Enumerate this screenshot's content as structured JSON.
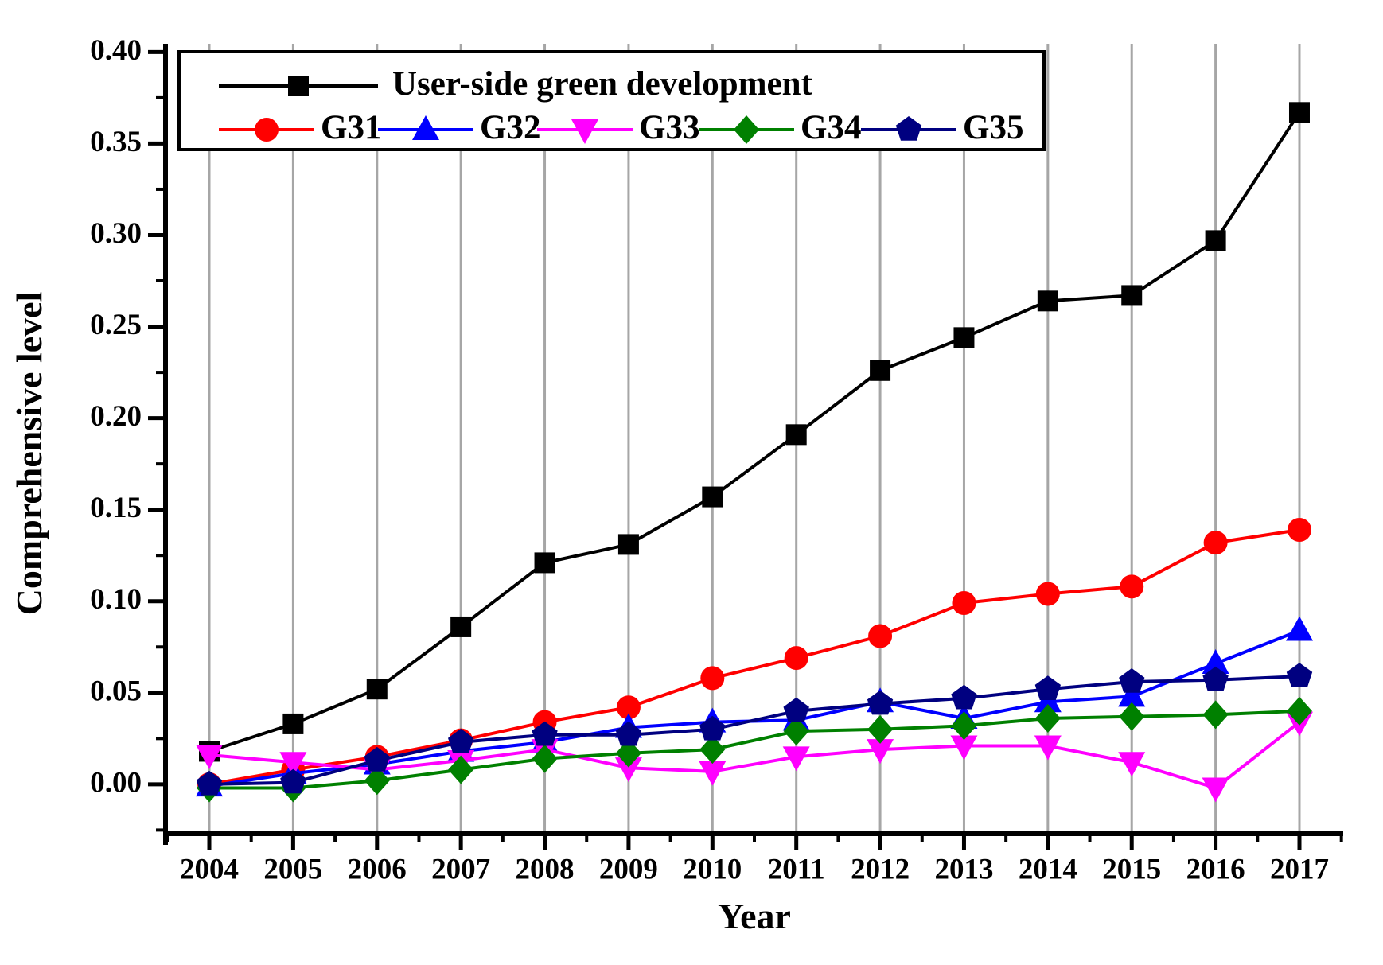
{
  "figure": {
    "background": "#ffffff",
    "gridline_color": "#a6a6a6",
    "axis_color": "#000000"
  },
  "chart_data": {
    "type": "line",
    "title": "",
    "xlabel": "Year",
    "ylabel": "Comprehensive level",
    "grid": "vertical-major-only",
    "legend_position": "top-left-inside",
    "xlim": [
      2003.478,
      2017.522
    ],
    "ylim": [
      -0.027,
      0.4045
    ],
    "x": [
      2004,
      2005,
      2006,
      2007,
      2008,
      2009,
      2010,
      2011,
      2012,
      2013,
      2014,
      2015,
      2016,
      2017
    ],
    "x_tick_labels": [
      "2004",
      "2005",
      "2006",
      "2007",
      "2008",
      "2009",
      "2010",
      "2011",
      "2012",
      "2013",
      "2014",
      "2015",
      "2016",
      "2017"
    ],
    "y_tick_values": [
      0.0,
      0.05,
      0.1,
      0.15,
      0.2,
      0.25,
      0.3,
      0.35,
      0.4
    ],
    "y_tick_labels": [
      "0.00",
      "0.05",
      "0.10",
      "0.15",
      "0.20",
      "0.25",
      "0.30",
      "0.35",
      "0.40"
    ],
    "y_minor_step": 0.025,
    "x_minor_step": 0.5,
    "series": [
      {
        "name": "User-side green development",
        "color": "#000000",
        "marker": "square",
        "values": [
          0.018,
          0.033,
          0.052,
          0.086,
          0.121,
          0.131,
          0.157,
          0.191,
          0.226,
          0.244,
          0.264,
          0.267,
          0.297,
          0.367
        ]
      },
      {
        "name": "G31",
        "color": "#ff0000",
        "marker": "circle",
        "values": [
          0.0,
          0.008,
          0.015,
          0.024,
          0.034,
          0.042,
          0.058,
          0.069,
          0.081,
          0.099,
          0.104,
          0.108,
          0.132,
          0.139
        ]
      },
      {
        "name": "G32",
        "color": "#0000ff",
        "marker": "triangle-up",
        "values": [
          -0.001,
          0.006,
          0.011,
          0.018,
          0.023,
          0.031,
          0.034,
          0.035,
          0.045,
          0.036,
          0.045,
          0.048,
          0.066,
          0.084
        ]
      },
      {
        "name": "G33",
        "color": "#ff00ff",
        "marker": "triangle-down",
        "values": [
          0.016,
          0.012,
          0.008,
          0.013,
          0.019,
          0.009,
          0.007,
          0.015,
          0.019,
          0.021,
          0.021,
          0.012,
          -0.002,
          0.034
        ]
      },
      {
        "name": "G34",
        "color": "#008000",
        "marker": "diamond",
        "values": [
          -0.002,
          -0.002,
          0.002,
          0.008,
          0.014,
          0.017,
          0.019,
          0.029,
          0.03,
          0.032,
          0.036,
          0.037,
          0.038,
          0.04
        ]
      },
      {
        "name": "G35",
        "color": "#000080",
        "marker": "pentagon",
        "values": [
          0.0,
          0.001,
          0.013,
          0.023,
          0.027,
          0.027,
          0.03,
          0.04,
          0.044,
          0.047,
          0.052,
          0.056,
          0.057,
          0.059
        ]
      }
    ]
  }
}
